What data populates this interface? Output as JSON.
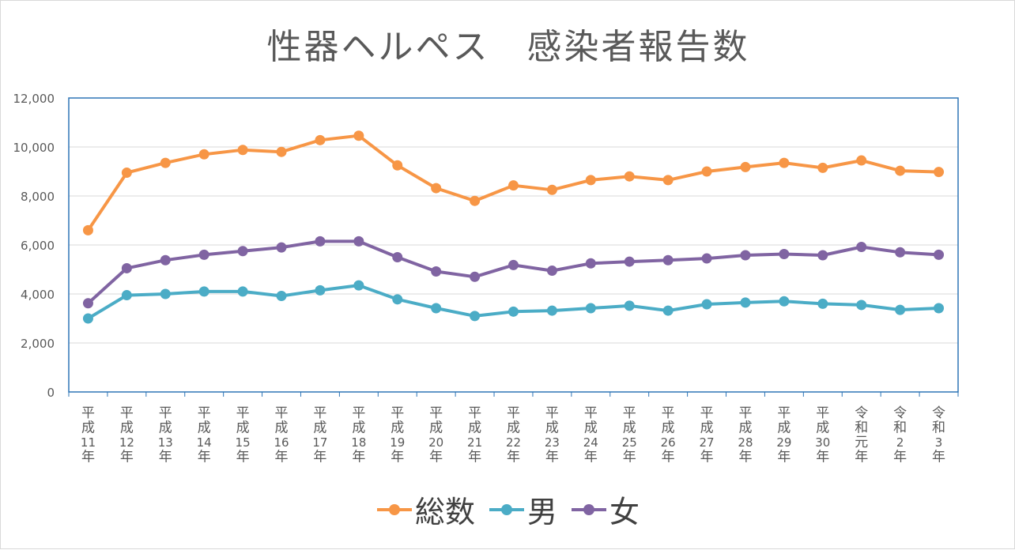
{
  "chart_data": {
    "type": "line",
    "title": "性器ヘルペス　感染者報告数",
    "categories": [
      [
        "平",
        "成",
        "11",
        "年"
      ],
      [
        "平",
        "成",
        "12",
        "年"
      ],
      [
        "平",
        "成",
        "13",
        "年"
      ],
      [
        "平",
        "成",
        "14",
        "年"
      ],
      [
        "平",
        "成",
        "15",
        "年"
      ],
      [
        "平",
        "成",
        "16",
        "年"
      ],
      [
        "平",
        "成",
        "17",
        "年"
      ],
      [
        "平",
        "成",
        "18",
        "年"
      ],
      [
        "平",
        "成",
        "19",
        "年"
      ],
      [
        "平",
        "成",
        "20",
        "年"
      ],
      [
        "平",
        "成",
        "21",
        "年"
      ],
      [
        "平",
        "成",
        "22",
        "年"
      ],
      [
        "平",
        "成",
        "23",
        "年"
      ],
      [
        "平",
        "成",
        "24",
        "年"
      ],
      [
        "平",
        "成",
        "25",
        "年"
      ],
      [
        "平",
        "成",
        "26",
        "年"
      ],
      [
        "平",
        "成",
        "27",
        "年"
      ],
      [
        "平",
        "成",
        "28",
        "年"
      ],
      [
        "平",
        "成",
        "29",
        "年"
      ],
      [
        "平",
        "成",
        "30",
        "年"
      ],
      [
        "令",
        "和",
        "元",
        "年"
      ],
      [
        "令",
        "和",
        "2",
        "年"
      ],
      [
        "令",
        "和",
        "3",
        "年"
      ]
    ],
    "ylim": [
      0,
      12000
    ],
    "yticks": [
      0,
      2000,
      4000,
      6000,
      8000,
      10000,
      12000
    ],
    "ytick_labels": [
      "0",
      "2,000",
      "4,000",
      "6,000",
      "8,000",
      "10,000",
      "12,000"
    ],
    "grid": true,
    "legend_position": "bottom",
    "series": [
      {
        "name": "総数",
        "color": "#F79646",
        "values": [
          6600,
          8950,
          9350,
          9700,
          9880,
          9800,
          10280,
          10460,
          9250,
          8320,
          7800,
          8430,
          8250,
          8650,
          8800,
          8650,
          9000,
          9180,
          9350,
          9150,
          9450,
          9030,
          8980
        ]
      },
      {
        "name": "男",
        "color": "#4BACC6",
        "values": [
          3000,
          3950,
          4000,
          4100,
          4100,
          3920,
          4150,
          4350,
          3780,
          3420,
          3100,
          3280,
          3320,
          3420,
          3520,
          3320,
          3580,
          3650,
          3700,
          3600,
          3550,
          3350,
          3420
        ]
      },
      {
        "name": "女",
        "color": "#8064A2",
        "values": [
          3620,
          5050,
          5380,
          5600,
          5750,
          5900,
          6150,
          6150,
          5500,
          4920,
          4700,
          5180,
          4950,
          5250,
          5320,
          5380,
          5450,
          5580,
          5630,
          5580,
          5920,
          5700,
          5600
        ]
      }
    ]
  }
}
